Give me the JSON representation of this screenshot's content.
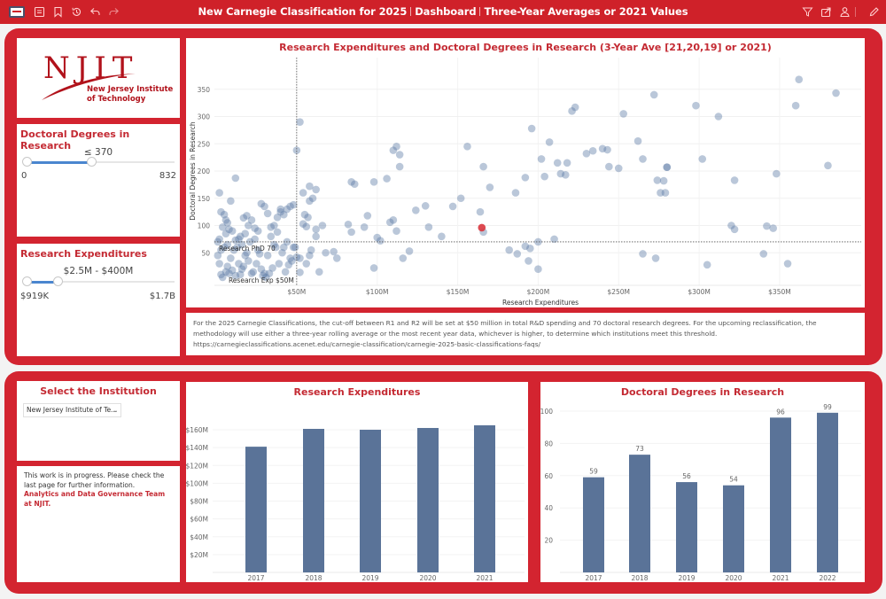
{
  "topbar": {
    "title_parts": [
      "New Carnegie Classification for 2025",
      "Dashboard",
      "Three-Year Averages or 2021 Values"
    ],
    "left_icons": [
      "app-logo-icon",
      "table-of-contents-icon",
      "bookmark-icon",
      "history-icon",
      "undo-icon",
      "redo-icon"
    ],
    "right_icons": [
      "filter-icon",
      "share-icon",
      "user-icon",
      "edit-icon"
    ]
  },
  "logo": {
    "main": "NJIT",
    "line1": "New Jersey Institute",
    "line2": "of Technology"
  },
  "doctoral_filter": {
    "title": "Doctoral Degrees in Research",
    "value_label": "≤ 370",
    "min_label": "0",
    "max_label": "832",
    "range_min": 0,
    "range_max": 832,
    "selected_low": 0,
    "selected_high": 370
  },
  "expenditure_filter": {
    "title": "Research Expenditures",
    "value_label": "$2.5M - $400M",
    "min_label": "$919K",
    "max_label": "$1.7B"
  },
  "scatter": {
    "title": "Research Expenditures and Doctoral Degrees in Research (3-Year Ave [21,20,19] or 2021)",
    "xlabel": "Research Expenditures",
    "ylabel": "Doctoral Degrees in Research",
    "x_ticks": [
      "$50M",
      "$100M",
      "$150M",
      "$200M",
      "$250M",
      "$300M",
      "$350M"
    ],
    "y_ticks": [
      "50",
      "100",
      "150",
      "200",
      "250",
      "300",
      "350"
    ],
    "ref_line_y_label": "Research PhD 70",
    "ref_line_x_label": "Research Exp $50M",
    "point_color": "#5b7aa5",
    "highlight_color": "#d9363e"
  },
  "note": {
    "text": "For the 2025 Carnegie Classifications, the cut-off between R1 and R2 will be set at $50 million in total R&D spending and 70 doctoral research degrees. For the upcoming reclassification, the methodology will use either a three-year rolling average or the most recent year data, whichever is higher, to determine which institutions meet this threshold. https://carnegieclassifications.acenet.edu/carnegie-classification/carnegie-2025-basic-classifications-faqs/"
  },
  "institution_select": {
    "title": "Select the Institution",
    "selected": "New Jersey Institute of Te..."
  },
  "info": {
    "line": "This work is in progress. Please check the last page for further information.",
    "link": "Analytics and Data Governance Team at NJIT."
  },
  "expenditure_chart": {
    "title": "Research Expenditures"
  },
  "doctoral_chart": {
    "title": "Doctoral Degrees in Research"
  },
  "chart_data": [
    {
      "type": "scatter",
      "title": "Research Expenditures and Doctoral Degrees in Research (3-Year Ave [21,20,19] or 2021)",
      "xlabel": "Research Expenditures",
      "ylabel": "Doctoral Degrees in Research",
      "xlim": [
        0,
        390
      ],
      "ylim": [
        0,
        390
      ],
      "x_unit": "$M",
      "reference_lines": [
        {
          "axis": "y",
          "value": 70,
          "label": "Research PhD 70"
        },
        {
          "axis": "x",
          "value": 50,
          "label": "Research Exp $50M"
        }
      ],
      "highlighted_point": {
        "label": "New Jersey Institute of Technology",
        "x": 165,
        "y": 96
      },
      "points": [
        [
          52,
          290
        ],
        [
          50,
          238
        ],
        [
          12,
          187
        ],
        [
          2,
          160
        ],
        [
          58,
          172
        ],
        [
          62,
          166
        ],
        [
          54,
          160
        ],
        [
          84,
          180
        ],
        [
          86,
          176
        ],
        [
          98,
          180
        ],
        [
          106,
          186
        ],
        [
          110,
          238
        ],
        [
          112,
          245
        ],
        [
          114,
          230
        ],
        [
          114,
          208
        ],
        [
          156,
          245
        ],
        [
          166,
          208
        ],
        [
          170,
          170
        ],
        [
          186,
          160
        ],
        [
          192,
          188
        ],
        [
          202,
          222
        ],
        [
          207,
          253
        ],
        [
          212,
          215
        ],
        [
          218,
          215
        ],
        [
          204,
          190
        ],
        [
          196,
          278
        ],
        [
          234,
          237
        ],
        [
          240,
          241
        ],
        [
          243,
          239
        ],
        [
          244,
          208
        ],
        [
          250,
          205
        ],
        [
          262,
          255
        ],
        [
          265,
          222
        ],
        [
          272,
          340
        ],
        [
          274,
          183
        ],
        [
          278,
          182
        ],
        [
          276,
          160
        ],
        [
          279,
          160
        ],
        [
          280,
          207
        ],
        [
          253,
          305
        ],
        [
          230,
          232
        ],
        [
          214,
          195
        ],
        [
          217,
          193
        ],
        [
          221,
          310
        ],
        [
          223,
          317
        ],
        [
          280,
          207
        ],
        [
          298,
          320
        ],
        [
          302,
          222
        ],
        [
          312,
          300
        ],
        [
          322,
          183
        ],
        [
          342,
          99
        ],
        [
          348,
          195
        ],
        [
          360,
          320
        ],
        [
          362,
          368
        ],
        [
          380,
          210
        ],
        [
          385,
          343
        ],
        [
          346,
          95
        ],
        [
          320,
          100
        ],
        [
          322,
          93
        ],
        [
          305,
          28
        ],
        [
          273,
          40
        ],
        [
          265,
          48
        ],
        [
          340,
          48
        ],
        [
          355,
          30
        ],
        [
          210,
          75
        ],
        [
          200,
          70
        ],
        [
          192,
          62
        ],
        [
          195,
          58
        ],
        [
          194,
          35
        ],
        [
          200,
          20
        ],
        [
          187,
          48
        ],
        [
          182,
          55
        ],
        [
          166,
          88
        ],
        [
          164,
          125
        ],
        [
          152,
          150
        ],
        [
          147,
          135
        ],
        [
          140,
          80
        ],
        [
          132,
          97
        ],
        [
          130,
          136
        ],
        [
          124,
          128
        ],
        [
          120,
          53
        ],
        [
          116,
          40
        ],
        [
          112,
          90
        ],
        [
          110,
          110
        ],
        [
          108,
          106
        ],
        [
          102,
          72
        ],
        [
          100,
          78
        ],
        [
          98,
          22
        ],
        [
          94,
          118
        ],
        [
          92,
          97
        ],
        [
          84,
          88
        ],
        [
          82,
          102
        ],
        [
          75,
          40
        ],
        [
          73,
          52
        ],
        [
          68,
          50
        ],
        [
          66,
          100
        ],
        [
          62,
          93
        ],
        [
          60,
          150
        ],
        [
          58,
          145
        ],
        [
          56,
          98
        ],
        [
          54,
          103
        ],
        [
          50,
          42
        ],
        [
          52,
          40
        ],
        [
          55,
          120
        ],
        [
          57,
          115
        ],
        [
          62,
          80
        ],
        [
          64,
          15
        ],
        [
          58,
          45
        ],
        [
          59,
          55
        ],
        [
          56,
          30
        ],
        [
          52,
          14
        ],
        [
          48,
          60
        ],
        [
          46,
          40
        ],
        [
          44,
          70
        ],
        [
          42,
          60
        ],
        [
          40,
          125
        ],
        [
          38,
          115
        ],
        [
          36,
          100
        ],
        [
          34,
          97
        ],
        [
          32,
          122
        ],
        [
          30,
          135
        ],
        [
          28,
          140
        ],
        [
          26,
          90
        ],
        [
          24,
          75
        ],
        [
          22,
          12
        ],
        [
          20,
          35
        ],
        [
          18,
          45
        ],
        [
          16,
          20
        ],
        [
          15,
          80
        ],
        [
          14,
          75
        ],
        [
          12,
          73
        ],
        [
          10,
          90
        ],
        [
          8,
          93
        ],
        [
          6,
          85
        ],
        [
          5,
          120
        ],
        [
          4,
          97
        ],
        [
          3,
          125
        ],
        [
          2,
          75
        ],
        [
          1,
          70
        ],
        [
          1,
          45
        ],
        [
          2,
          30
        ],
        [
          3,
          10
        ],
        [
          4,
          5
        ],
        [
          6,
          15
        ],
        [
          7,
          25
        ],
        [
          9,
          40
        ],
        [
          11,
          55
        ],
        [
          13,
          60
        ],
        [
          15,
          10
        ],
        [
          17,
          25
        ],
        [
          19,
          50
        ],
        [
          21,
          70
        ],
        [
          23,
          15
        ],
        [
          25,
          30
        ],
        [
          27,
          48
        ],
        [
          29,
          8
        ],
        [
          31,
          5
        ],
        [
          33,
          12
        ],
        [
          35,
          22
        ],
        [
          37,
          60
        ],
        [
          39,
          30
        ],
        [
          41,
          50
        ],
        [
          43,
          15
        ],
        [
          45,
          28
        ],
        [
          47,
          35
        ],
        [
          49,
          60
        ],
        [
          3,
          55
        ],
        [
          5,
          60
        ],
        [
          7,
          65
        ],
        [
          8,
          12
        ],
        [
          10,
          18
        ],
        [
          12,
          8
        ],
        [
          14,
          30
        ],
        [
          16,
          65
        ],
        [
          18,
          85
        ],
        [
          20,
          100
        ],
        [
          22,
          110
        ],
        [
          24,
          95
        ],
        [
          26,
          55
        ],
        [
          28,
          20
        ],
        [
          30,
          12
        ],
        [
          32,
          45
        ],
        [
          34,
          80
        ],
        [
          36,
          65
        ],
        [
          38,
          88
        ],
        [
          40,
          130
        ],
        [
          42,
          120
        ],
        [
          44,
          130
        ],
        [
          46,
          135
        ],
        [
          48,
          138
        ],
        [
          9,
          145
        ],
        [
          7,
          105
        ],
        [
          6,
          110
        ],
        [
          19,
          118
        ],
        [
          17,
          114
        ]
      ]
    },
    {
      "type": "bar",
      "title": "Research Expenditures",
      "categories": [
        "2017",
        "2018",
        "2019",
        "2020",
        "2021"
      ],
      "values": [
        141,
        161,
        160,
        162,
        165
      ],
      "unit": "$M",
      "ylabel": "",
      "xlabel": "",
      "y_ticks": [
        "$20M",
        "$40M",
        "$60M",
        "$80M",
        "$100M",
        "$120M",
        "$140M",
        "$160M"
      ],
      "ylim": [
        0,
        185
      ],
      "color": "#5a7398"
    },
    {
      "type": "bar",
      "title": "Doctoral Degrees in Research",
      "categories": [
        "2017",
        "2018",
        "2019",
        "2020",
        "2021",
        "2022"
      ],
      "values": [
        59,
        73,
        56,
        54,
        96,
        99
      ],
      "data_labels": [
        "59",
        "73",
        "56",
        "54",
        "96",
        "99"
      ],
      "y_ticks": [
        "20",
        "40",
        "60",
        "80",
        "100"
      ],
      "ylim": [
        0,
        103
      ],
      "color": "#5a7398"
    }
  ]
}
